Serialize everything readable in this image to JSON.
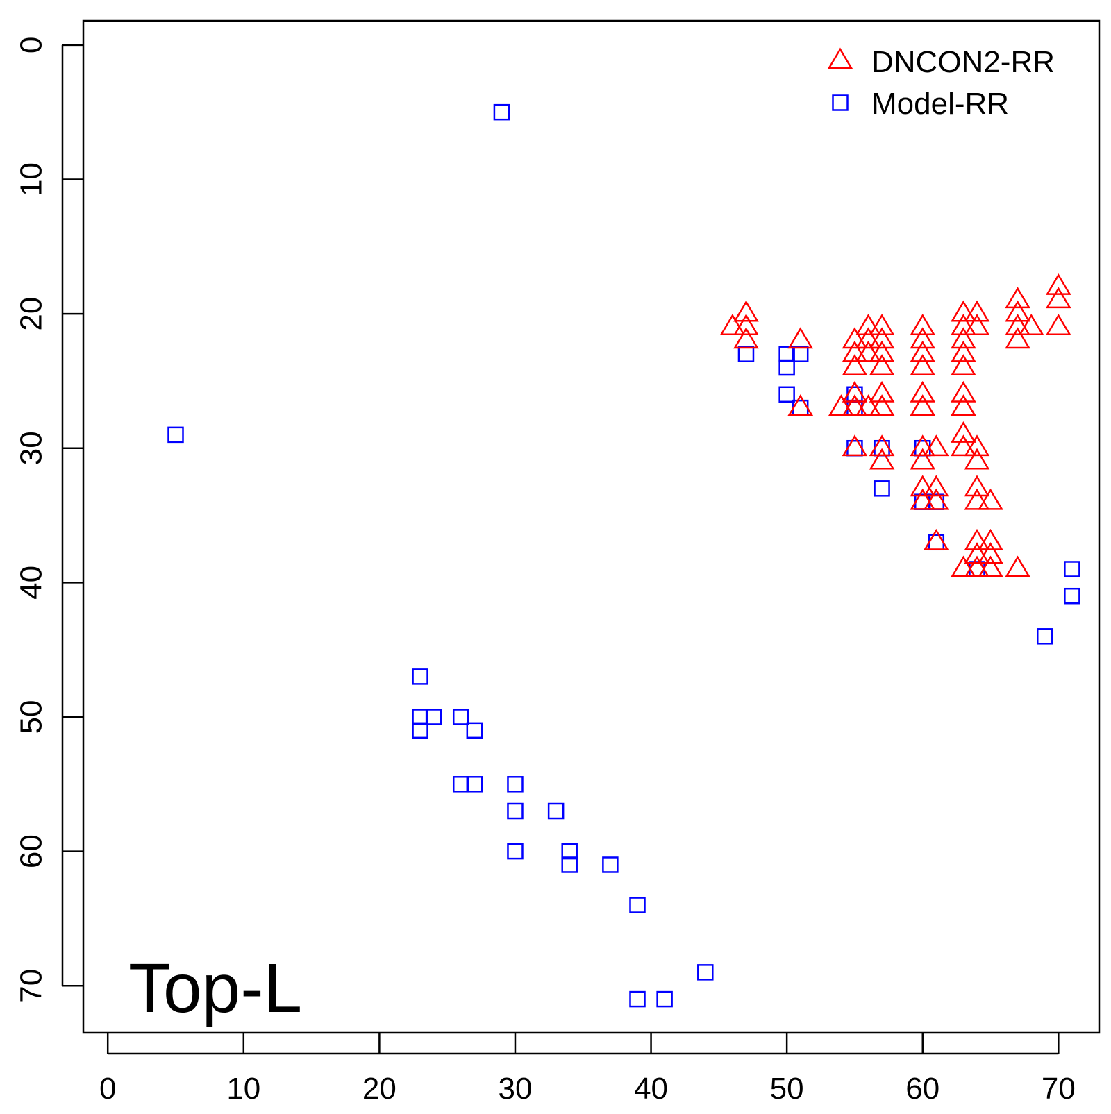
{
  "chart_data": {
    "type": "scatter",
    "title": "",
    "xlabel": "",
    "ylabel": "",
    "xlim": [
      -1.8,
      73
    ],
    "ylim": [
      73.5,
      -1.8
    ],
    "y_reversed": true,
    "x_ticks": [
      "0",
      "10",
      "20",
      "30",
      "40",
      "50",
      "60",
      "70"
    ],
    "y_ticks": [
      "0",
      "10",
      "20",
      "30",
      "40",
      "50",
      "60",
      "70"
    ],
    "grid": false,
    "legend": {
      "position": "top-right"
    },
    "annotation": "Top-L",
    "series": [
      {
        "name": "DNCON2-RR",
        "marker": "triangle",
        "color": "#ff0000",
        "points": [
          [
            46,
            21
          ],
          [
            47,
            20
          ],
          [
            47,
            21
          ],
          [
            47,
            22
          ],
          [
            51,
            22
          ],
          [
            51,
            27
          ],
          [
            54,
            27
          ],
          [
            55,
            22
          ],
          [
            55,
            23
          ],
          [
            55,
            24
          ],
          [
            55,
            26
          ],
          [
            55,
            27
          ],
          [
            55,
            30
          ],
          [
            56,
            21
          ],
          [
            56,
            22
          ],
          [
            56,
            23
          ],
          [
            56,
            27
          ],
          [
            57,
            21
          ],
          [
            57,
            22
          ],
          [
            57,
            23
          ],
          [
            57,
            24
          ],
          [
            57,
            26
          ],
          [
            57,
            27
          ],
          [
            57,
            30
          ],
          [
            57,
            31
          ],
          [
            60,
            21
          ],
          [
            60,
            22
          ],
          [
            60,
            23
          ],
          [
            60,
            24
          ],
          [
            60,
            26
          ],
          [
            60,
            27
          ],
          [
            60,
            30
          ],
          [
            60,
            31
          ],
          [
            60,
            33
          ],
          [
            60,
            34
          ],
          [
            61,
            30
          ],
          [
            61,
            33
          ],
          [
            61,
            34
          ],
          [
            61,
            37
          ],
          [
            63,
            20
          ],
          [
            63,
            21
          ],
          [
            63,
            22
          ],
          [
            63,
            23
          ],
          [
            63,
            24
          ],
          [
            63,
            26
          ],
          [
            63,
            27
          ],
          [
            63,
            29
          ],
          [
            63,
            30
          ],
          [
            63,
            39
          ],
          [
            64,
            20
          ],
          [
            64,
            21
          ],
          [
            64,
            30
          ],
          [
            64,
            31
          ],
          [
            64,
            33
          ],
          [
            64,
            34
          ],
          [
            64,
            37
          ],
          [
            64,
            38
          ],
          [
            64,
            39
          ],
          [
            65,
            34
          ],
          [
            65,
            37
          ],
          [
            65,
            38
          ],
          [
            65,
            39
          ],
          [
            67,
            19
          ],
          [
            67,
            20
          ],
          [
            67,
            21
          ],
          [
            67,
            22
          ],
          [
            67,
            39
          ],
          [
            68,
            21
          ],
          [
            70,
            18
          ],
          [
            70,
            19
          ],
          [
            70,
            21
          ]
        ]
      },
      {
        "name": "Model-RR",
        "marker": "square",
        "color": "#0000ff",
        "points": [
          [
            5,
            29
          ],
          [
            29,
            5
          ],
          [
            23,
            47
          ],
          [
            23,
            50
          ],
          [
            23,
            51
          ],
          [
            24,
            50
          ],
          [
            26,
            50
          ],
          [
            27,
            51
          ],
          [
            26,
            55
          ],
          [
            27,
            55
          ],
          [
            30,
            55
          ],
          [
            30,
            57
          ],
          [
            30,
            60
          ],
          [
            33,
            57
          ],
          [
            34,
            60
          ],
          [
            34,
            61
          ],
          [
            37,
            61
          ],
          [
            39,
            64
          ],
          [
            39,
            71
          ],
          [
            41,
            71
          ],
          [
            44,
            69
          ],
          [
            47,
            23
          ],
          [
            50,
            23
          ],
          [
            50,
            24
          ],
          [
            50,
            26
          ],
          [
            51,
            23
          ],
          [
            51,
            27
          ],
          [
            55,
            26
          ],
          [
            55,
            27
          ],
          [
            55,
            30
          ],
          [
            57,
            30
          ],
          [
            57,
            33
          ],
          [
            60,
            30
          ],
          [
            60,
            34
          ],
          [
            61,
            34
          ],
          [
            61,
            37
          ],
          [
            64,
            39
          ],
          [
            69,
            44
          ],
          [
            71,
            39
          ],
          [
            71,
            41
          ]
        ]
      }
    ]
  }
}
